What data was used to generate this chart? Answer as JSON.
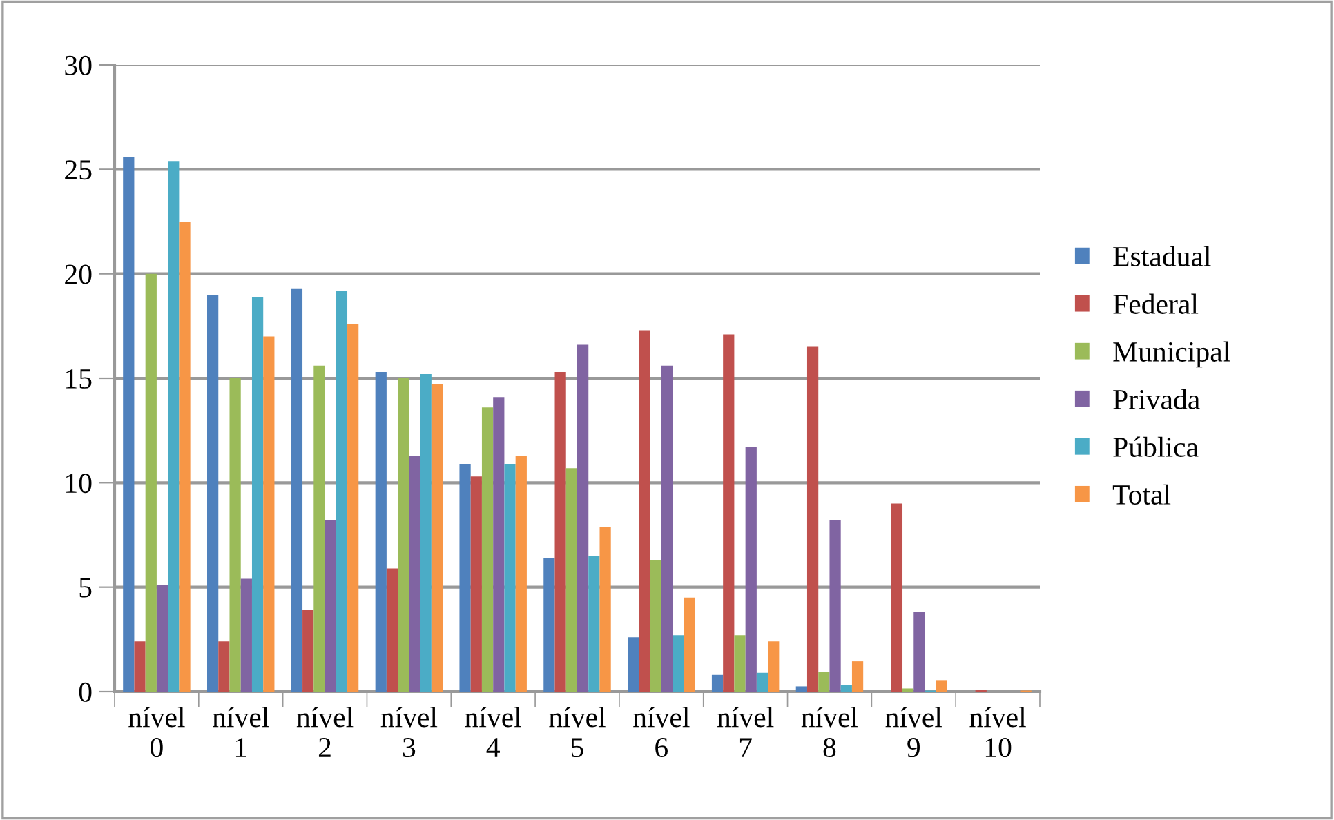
{
  "chart_data": {
    "type": "bar",
    "categories": [
      "nível\n0",
      "nível\n1",
      "nível\n2",
      "nível\n3",
      "nível\n4",
      "nível\n5",
      "nível\n6",
      "nível\n7",
      "nível\n8",
      "nível\n9",
      "nível\n10"
    ],
    "series": [
      {
        "name": "Estadual",
        "color": "#4f81bd",
        "values": [
          25.6,
          19.0,
          19.3,
          15.3,
          10.9,
          6.4,
          2.6,
          0.8,
          0.25,
          0.0,
          0.0
        ]
      },
      {
        "name": "Federal",
        "color": "#c0504d",
        "values": [
          2.4,
          2.4,
          3.9,
          5.9,
          10.3,
          15.3,
          17.3,
          17.1,
          16.5,
          9.0,
          0.1
        ]
      },
      {
        "name": "Municipal",
        "color": "#9bbb59",
        "values": [
          20.0,
          15.0,
          15.6,
          15.0,
          13.6,
          10.7,
          6.3,
          2.7,
          0.95,
          0.15,
          0.0
        ]
      },
      {
        "name": "Privada",
        "color": "#8064a2",
        "values": [
          5.1,
          5.4,
          8.2,
          11.3,
          14.1,
          16.6,
          15.6,
          11.7,
          8.2,
          3.8,
          null
        ]
      },
      {
        "name": "Pública",
        "color": "#4bacc6",
        "values": [
          25.4,
          18.9,
          19.2,
          15.2,
          10.9,
          6.5,
          2.7,
          0.9,
          0.3,
          0.05,
          0.0
        ]
      },
      {
        "name": "Total",
        "color": "#f79646",
        "values": [
          22.5,
          17.0,
          17.6,
          14.7,
          11.3,
          7.9,
          4.5,
          2.4,
          1.45,
          0.55,
          0.05
        ]
      }
    ],
    "ylim": [
      0,
      30
    ],
    "yticks": [
      0,
      5,
      10,
      15,
      20,
      25,
      30
    ],
    "grid": "y",
    "legend": "right"
  }
}
